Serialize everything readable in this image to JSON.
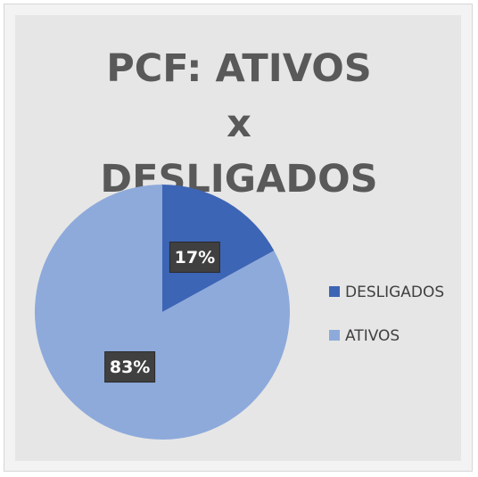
{
  "chart_data": {
    "type": "pie",
    "title": "PCF: ATIVOS x DESLIGADOS",
    "categories": [
      "DESLIGADOS",
      "ATIVOS"
    ],
    "values": [
      17,
      83
    ],
    "value_labels": [
      "17%",
      "83%"
    ],
    "colors": [
      "#3d65b5",
      "#8eaadb"
    ],
    "legend": "right"
  }
}
